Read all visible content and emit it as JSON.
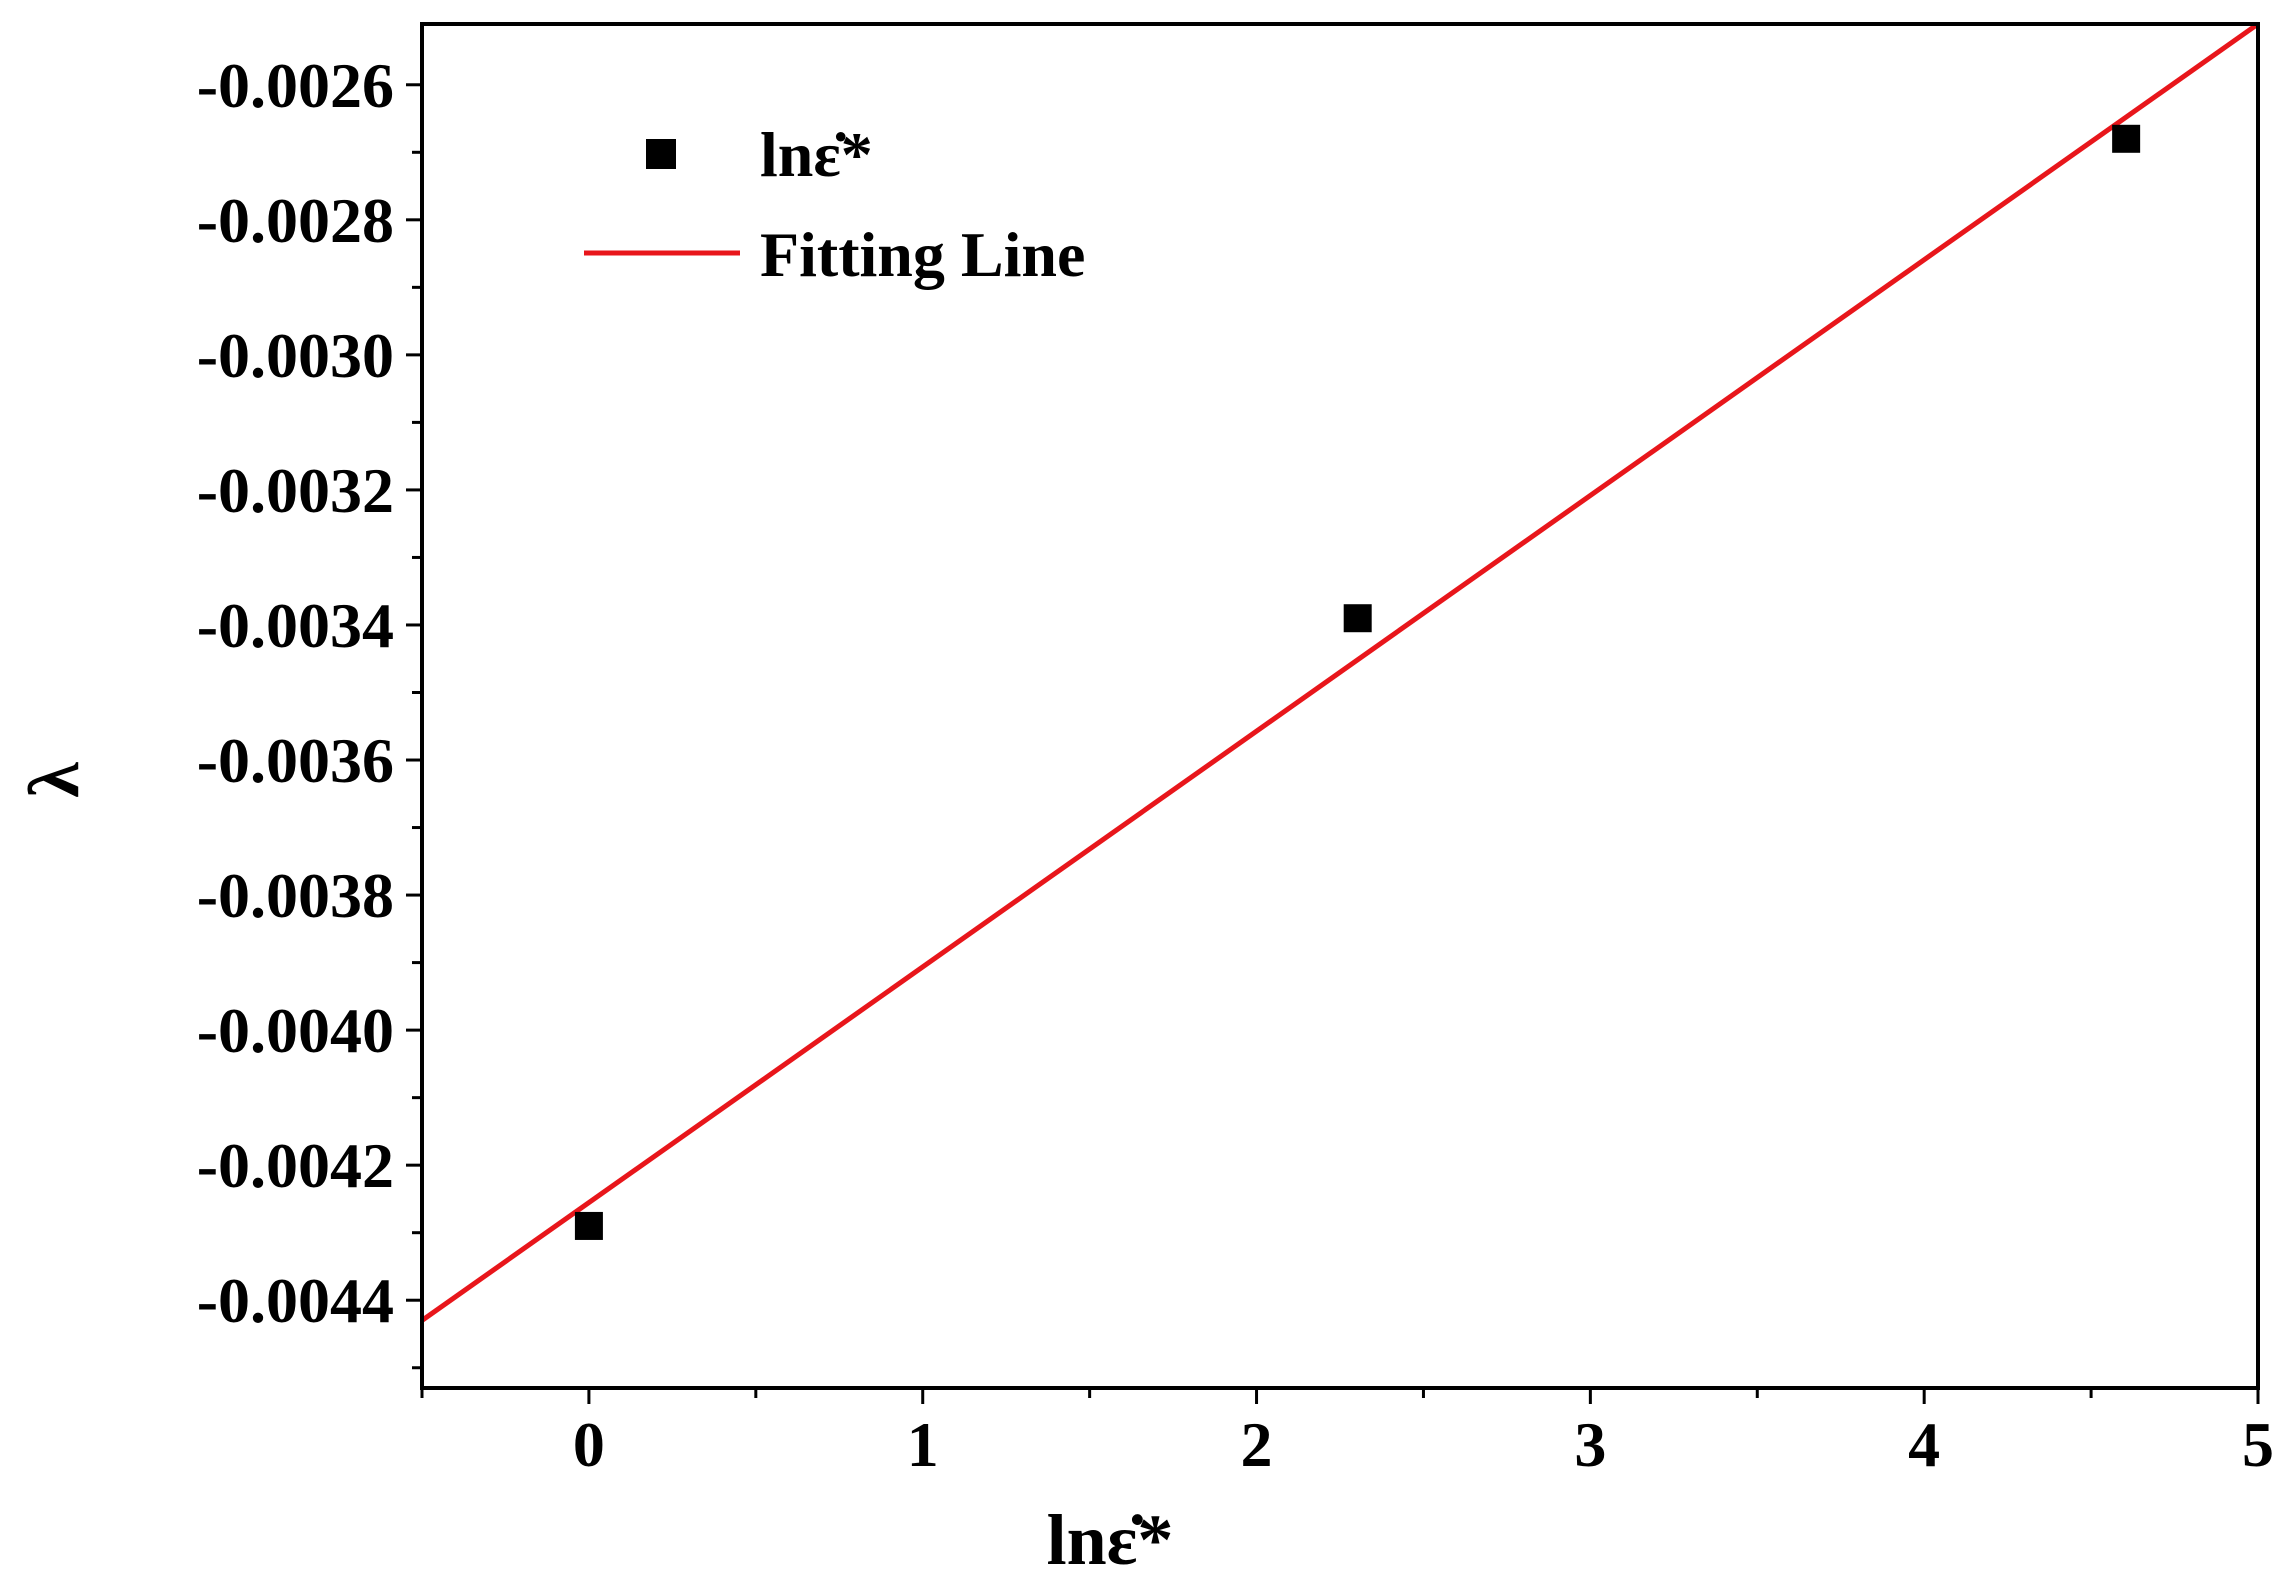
{
  "chart_data": {
    "type": "scatter",
    "xlabel": "lnε̇*",
    "ylabel": "λ",
    "xlim": [
      -0.5,
      5
    ],
    "ylim": [
      -0.00453,
      -0.00251
    ],
    "x_ticks": [
      0,
      1,
      2,
      3,
      4,
      5
    ],
    "x_tick_labels": [
      "0",
      "1",
      "2",
      "3",
      "4",
      "5"
    ],
    "y_ticks": [
      -0.0026,
      -0.0028,
      -0.003,
      -0.0032,
      -0.0034,
      -0.0036,
      -0.0038,
      -0.004,
      -0.0042,
      -0.0044
    ],
    "y_tick_labels": [
      "-0.0026",
      "-0.0028",
      "-0.0030",
      "-0.0032",
      "-0.0034",
      "-0.0036",
      "-0.0038",
      "-0.0040",
      "-0.0042",
      "-0.0044"
    ],
    "grid": false,
    "legend_position": "top-left",
    "series": [
      {
        "name": "lnε̇*",
        "kind": "scatter",
        "marker": "square",
        "color": "#000000",
        "x": [
          0,
          2.303,
          4.605
        ],
        "y": [
          -0.00429,
          -0.00339,
          -0.00268
        ]
      },
      {
        "name": "Fitting Line",
        "kind": "line",
        "color": "#e8161b",
        "x": [
          -0.5,
          5
        ],
        "y": [
          -0.00443,
          -0.00251
        ]
      }
    ]
  }
}
